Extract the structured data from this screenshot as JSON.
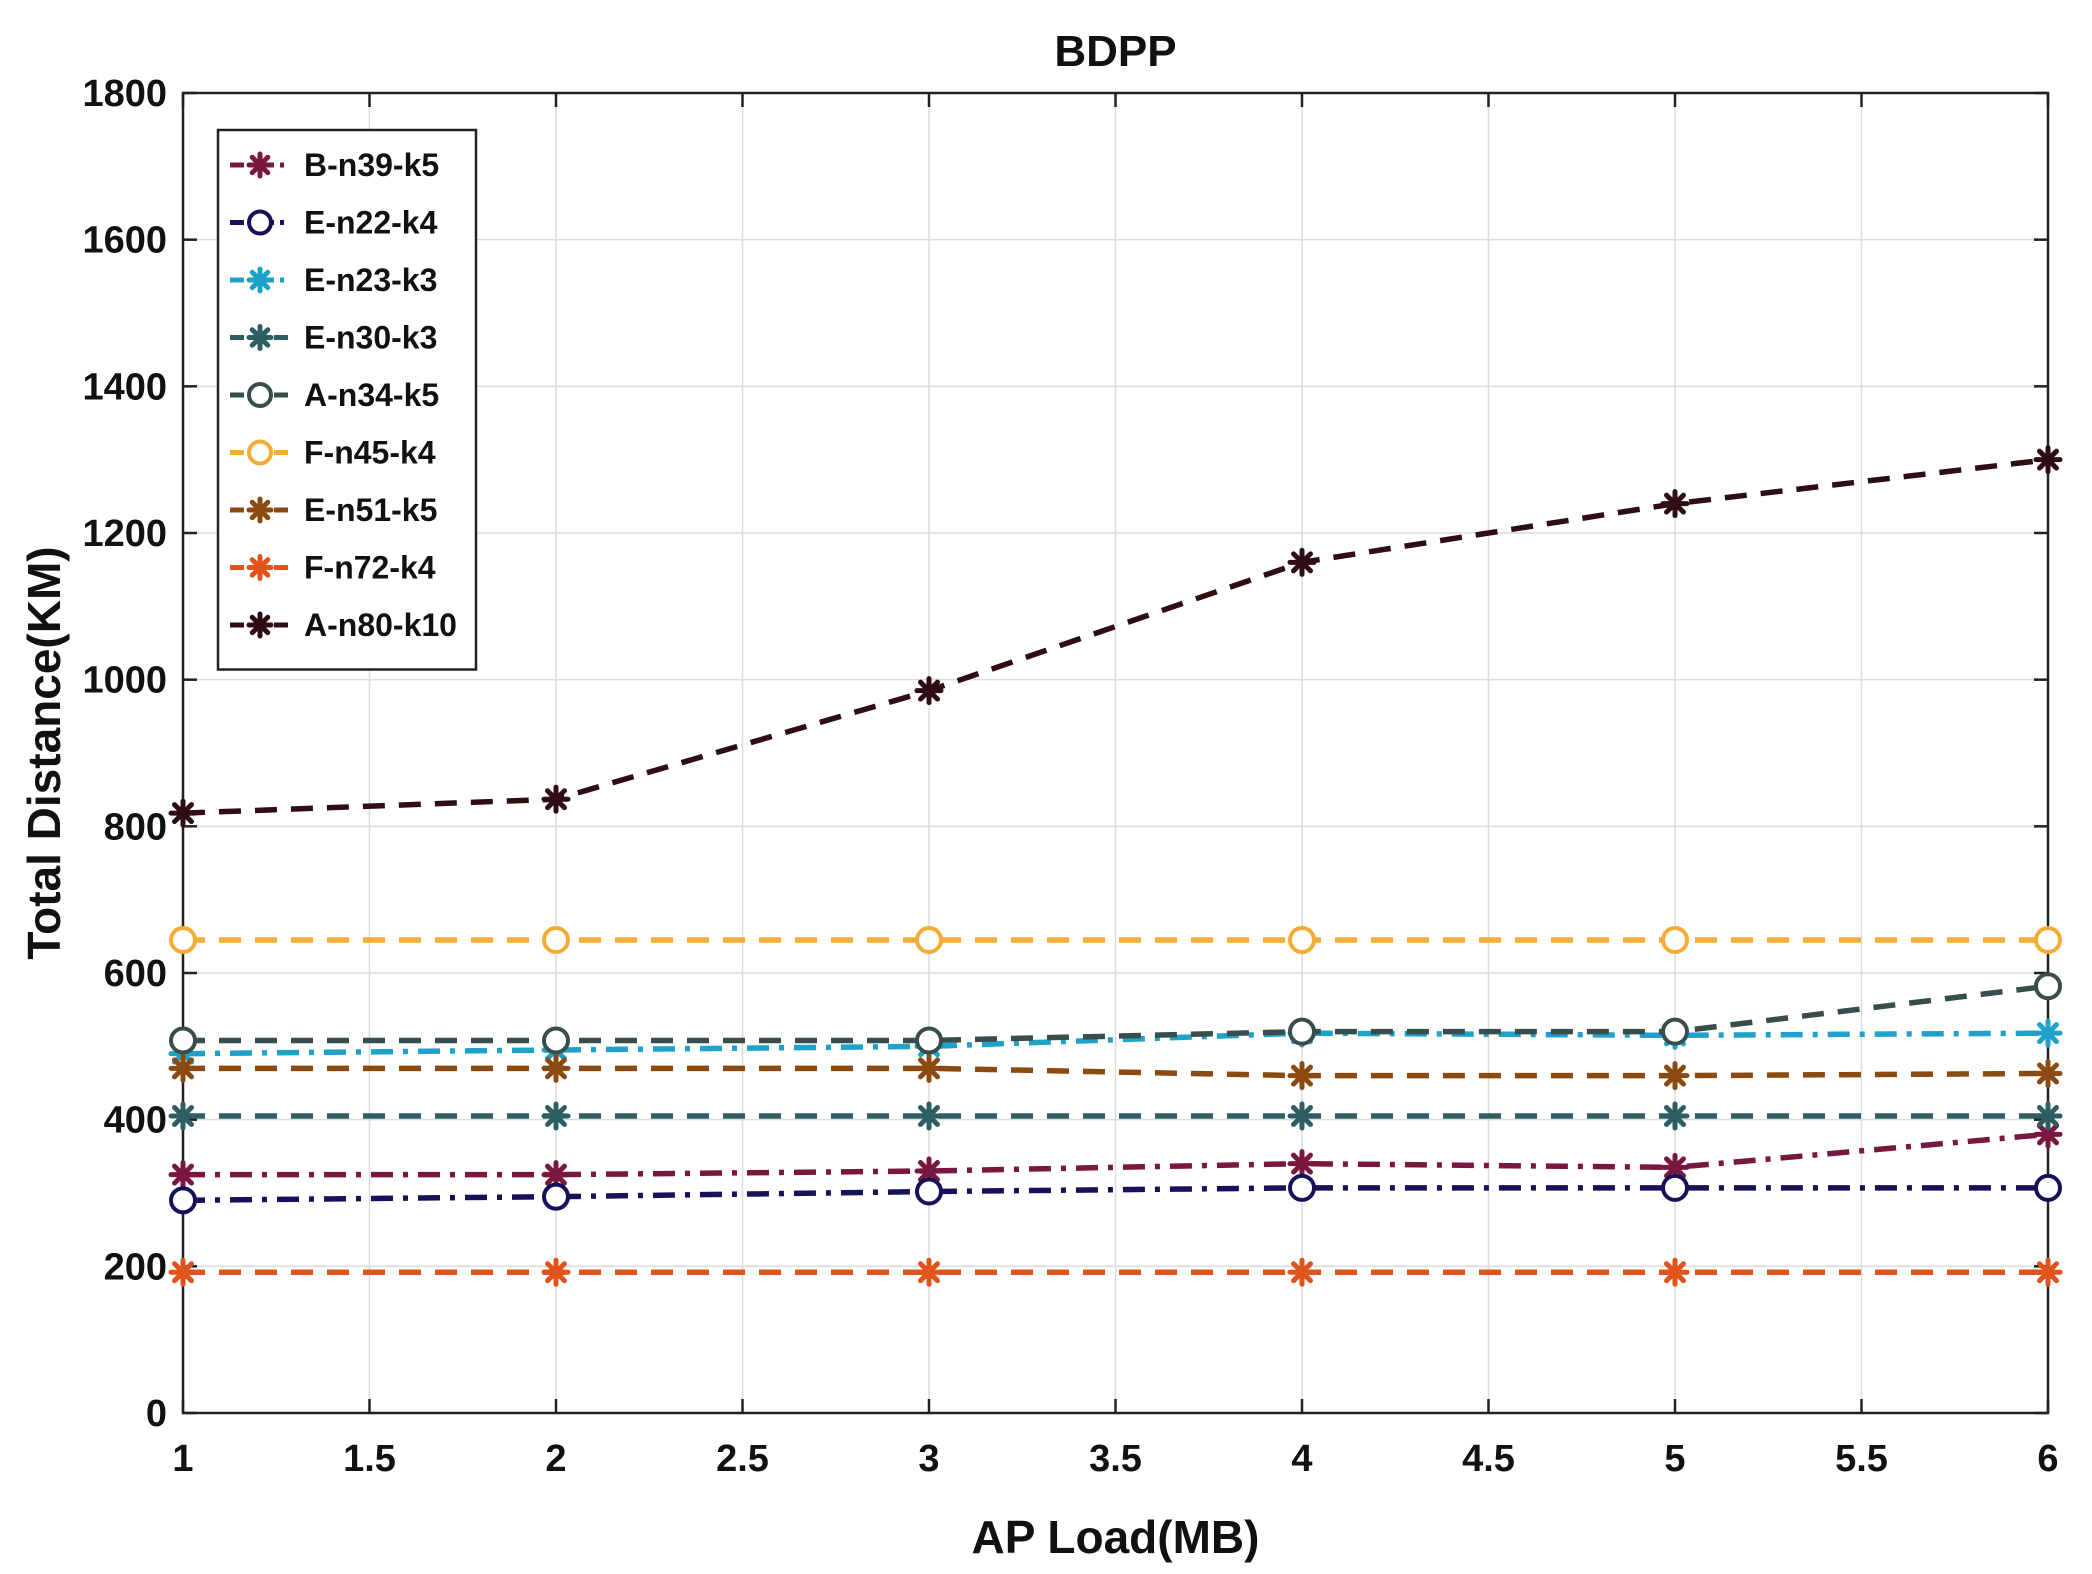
{
  "chart_data": {
    "type": "line",
    "title": "BDPP",
    "xlabel": "AP Load(MB)",
    "ylabel": "Total Distance(KM)",
    "xlim": [
      1,
      6
    ],
    "ylim": [
      0,
      1800
    ],
    "xticks": [
      1,
      1.5,
      2,
      2.5,
      3,
      3.5,
      4,
      4.5,
      5,
      5.5,
      6
    ],
    "xtick_labels": [
      "1",
      "1.5",
      "2",
      "2.5",
      "3",
      "3.5",
      "4",
      "4.5",
      "5",
      "5.5",
      "6"
    ],
    "yticks": [
      0,
      200,
      400,
      600,
      800,
      1000,
      1200,
      1400,
      1600,
      1800
    ],
    "ytick_labels": [
      "0",
      "200",
      "400",
      "600",
      "800",
      "1000",
      "1200",
      "1400",
      "1600",
      "1800"
    ],
    "grid": true,
    "legend_position": "top-left",
    "x": [
      1,
      2,
      3,
      4,
      5,
      6
    ],
    "series": [
      {
        "name": "B-n39-k5",
        "color": "#7a1740",
        "marker": "asterisk",
        "dash": "dashdot",
        "values": [
          325,
          325,
          330,
          340,
          335,
          380
        ]
      },
      {
        "name": "E-n22-k4",
        "color": "#15125a",
        "marker": "circle",
        "dash": "dashdot",
        "values": [
          290,
          295,
          302,
          307,
          307,
          307
        ]
      },
      {
        "name": "E-n23-k3",
        "color": "#1fa2c9",
        "marker": "asterisk",
        "dash": "dashdot",
        "values": [
          490,
          495,
          500,
          518,
          515,
          518
        ]
      },
      {
        "name": "E-n30-k3",
        "color": "#2c5e62",
        "marker": "asterisk",
        "dash": "dashed",
        "values": [
          405,
          405,
          405,
          405,
          405,
          405
        ]
      },
      {
        "name": "A-n34-k5",
        "color": "#394d4d",
        "marker": "circle",
        "dash": "dashed",
        "values": [
          508,
          508,
          508,
          520,
          520,
          582
        ]
      },
      {
        "name": "F-n45-k4",
        "color": "#f4ac34",
        "marker": "circle",
        "dash": "dashed",
        "values": [
          645,
          645,
          645,
          645,
          645,
          645
        ]
      },
      {
        "name": "E-n51-k5",
        "color": "#8a4a10",
        "marker": "asterisk",
        "dash": "dashed",
        "values": [
          470,
          470,
          470,
          460,
          460,
          463
        ]
      },
      {
        "name": "F-n72-k4",
        "color": "#e0531c",
        "marker": "asterisk",
        "dash": "dashed",
        "values": [
          192,
          192,
          192,
          192,
          192,
          192
        ]
      },
      {
        "name": "A-n80-k10",
        "color": "#2e0d13",
        "marker": "asterisk",
        "dash": "dashed",
        "values": [
          818,
          837,
          985,
          1160,
          1240,
          1300
        ]
      }
    ]
  }
}
